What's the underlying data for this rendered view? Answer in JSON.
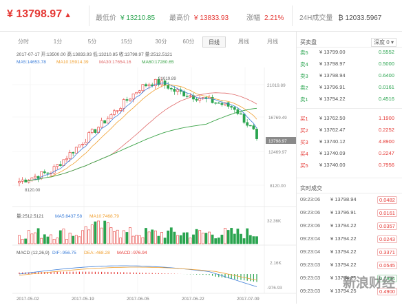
{
  "header": {
    "currency_symbol": "¥",
    "price": "13798.97",
    "up_arrow_icon": "arrow-up-icon",
    "low_label": "最低价",
    "low_value": "¥ 13210.85",
    "high_label": "最高价",
    "high_value": "¥ 13833.93",
    "change_label": "涨幅",
    "change_value": "2.21%",
    "vol_label": "24H成交量",
    "vol_value": "₿ 12033.5967"
  },
  "tabs": [
    "分时",
    "1分",
    "5分",
    "15分",
    "30分",
    "60分",
    "日线",
    "周线",
    "月线"
  ],
  "active_tab": "日线",
  "chart": {
    "info_line": "2017-07-17  开:13500.00  高:13833.93  低:13210.85  收:13798.97  量:2512.5121",
    "ma_line": {
      "ma5": "MA5:14653.78",
      "ma10": "MA10:15914.39",
      "ma30": "MA30:17654.16",
      "ma60": "MA60:17280.65"
    },
    "high_marker": "21019.89",
    "low_marker": "8120.00",
    "price_axis": [
      "21019.89",
      "16769.49",
      "12469.97",
      "8120.00"
    ],
    "current_price_tag": "13798.97",
    "volume_info": {
      "vol": "量:2512.5121",
      "ma5": "MA5:8437.58",
      "ma10": "MA10:7468.79"
    },
    "volume_axis": "32.36K",
    "macd_info": {
      "label": "MACD (12,26,9)",
      "dif": "DIF:-956.75",
      "dea": "DEA:-468.28",
      "macd": "MACD:-976.94"
    },
    "macd_axis": [
      "2.16K",
      "-976.93"
    ],
    "dates": [
      "2017-05-02",
      "2017-05-19",
      "2017-06-05",
      "2017-06-22",
      "2017-07-09"
    ],
    "colors": {
      "up": "#e53935",
      "down": "#2aa44f",
      "ma5": "#3b7dd8",
      "ma10": "#f0a030",
      "ma30": "#e06a6a",
      "ma60": "#3aa347"
    }
  },
  "orderbook": {
    "title": "买卖盘",
    "depth_select": "深度 0",
    "headers": [
      "",
      "价格(¥)",
      "数量(₿)"
    ],
    "asks": [
      {
        "label": "卖5",
        "price": "¥ 13799.00",
        "amount": "0.5552"
      },
      {
        "label": "卖4",
        "price": "¥ 13798.97",
        "amount": "0.5000"
      },
      {
        "label": "卖3",
        "price": "¥ 13798.94",
        "amount": "0.6400"
      },
      {
        "label": "卖2",
        "price": "¥ 13796.91",
        "amount": "0.0161"
      },
      {
        "label": "卖1",
        "price": "¥ 13794.22",
        "amount": "0.4516"
      }
    ],
    "bids": [
      {
        "label": "买1",
        "price": "¥ 13762.50",
        "amount": "1.1900"
      },
      {
        "label": "买2",
        "price": "¥ 13762.47",
        "amount": "0.2252"
      },
      {
        "label": "买3",
        "price": "¥ 13740.12",
        "amount": "4.8900"
      },
      {
        "label": "买4",
        "price": "¥ 13740.09",
        "amount": "0.2247"
      },
      {
        "label": "买5",
        "price": "¥ 13740.00",
        "amount": "0.7956"
      }
    ]
  },
  "trades": {
    "title": "实时成交",
    "headers": [
      "时间",
      "价格(¥)",
      "数量(₿)"
    ],
    "rows": [
      {
        "time": "09:23:06",
        "price": "¥ 13798.94",
        "amount": "0.0482",
        "side": "buy"
      },
      {
        "time": "09:23:06",
        "price": "¥ 13796.91",
        "amount": "0.0161",
        "side": "buy"
      },
      {
        "time": "09:23:06",
        "price": "¥ 13794.22",
        "amount": "0.0357",
        "side": "buy"
      },
      {
        "time": "09:23:04",
        "price": "¥ 13794.22",
        "amount": "0.0243",
        "side": "buy"
      },
      {
        "time": "09:23:04",
        "price": "¥ 13794.22",
        "amount": "0.3371",
        "side": "buy"
      },
      {
        "time": "09:23:03",
        "price": "¥ 13794.22",
        "amount": "0.0545",
        "side": "buy"
      },
      {
        "time": "09:23:03",
        "price": "¥ 13794.25",
        "amount": "0.7984",
        "side": "sell"
      },
      {
        "time": "09:23:03",
        "price": "¥ 13794.25",
        "amount": "0.4900",
        "side": "buy"
      }
    ]
  },
  "watermark": "新浪财经",
  "chart_data": {
    "type": "candlestick",
    "candle_count": 76,
    "price_range": [
      8120.0,
      21019.89
    ],
    "last": {
      "date": "2017-07-17",
      "open": 13500.0,
      "high": 13833.93,
      "low": 13210.85,
      "close": 13798.97,
      "volume": 2512.5121
    },
    "moving_averages": {
      "MA5": 14653.78,
      "MA10": 15914.39,
      "MA30": 17654.16,
      "MA60": 17280.65
    },
    "macd": {
      "DIF": -956.75,
      "DEA": -468.28,
      "MACD": -976.94
    },
    "x_ticks": [
      "2017-05-02",
      "2017-05-19",
      "2017-06-05",
      "2017-06-22",
      "2017-07-09"
    ]
  }
}
